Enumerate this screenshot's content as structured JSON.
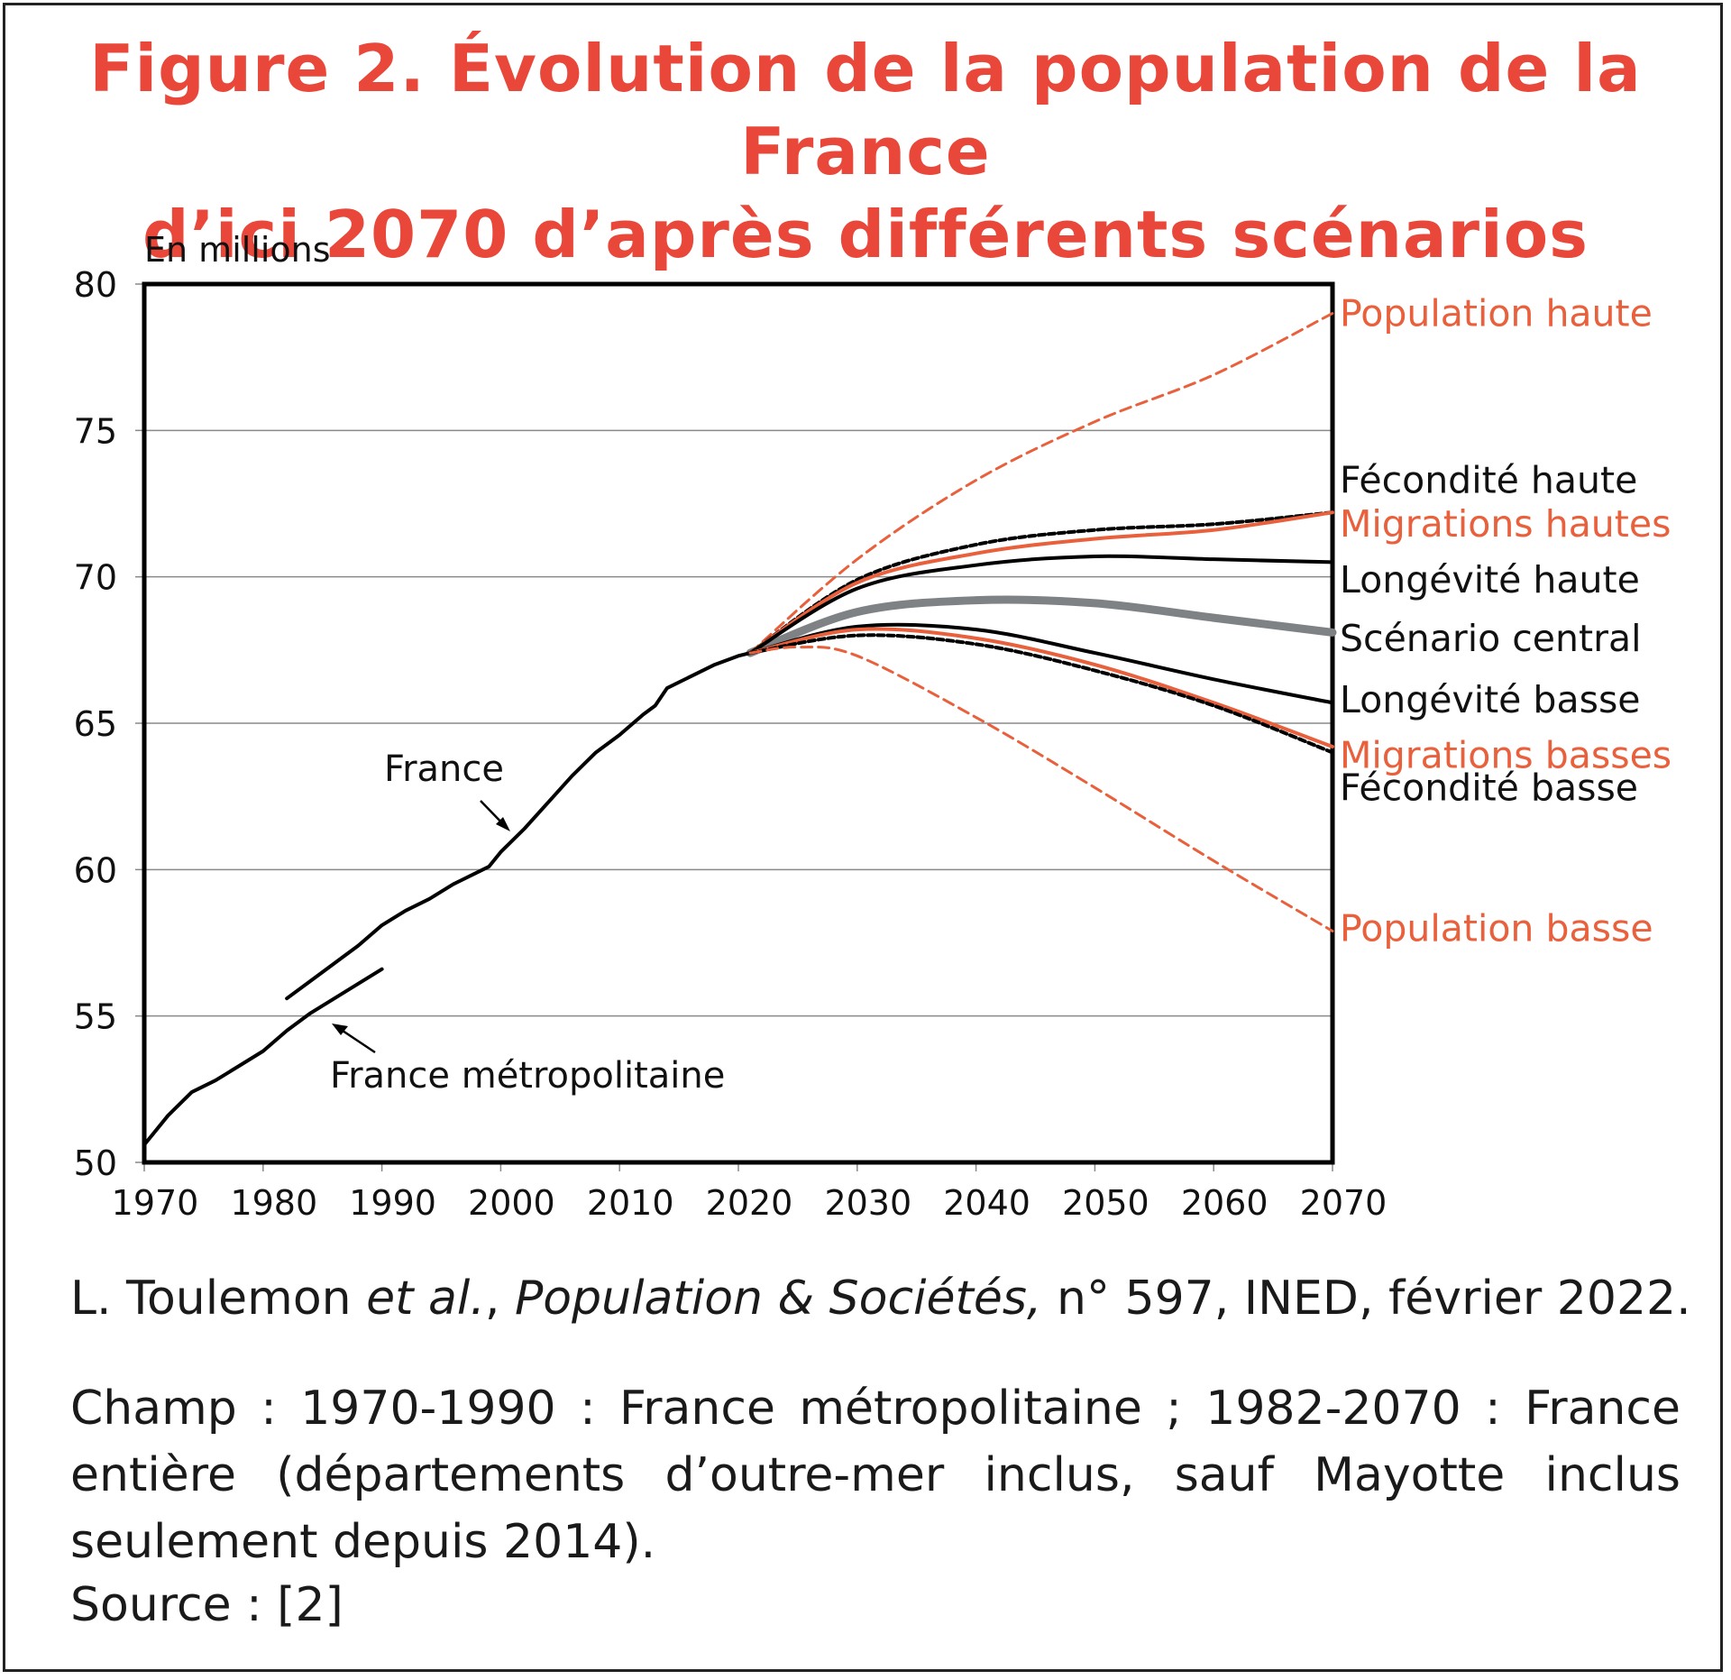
{
  "title_line1": "Figure 2. Évolution de la population de la France",
  "title_line2": "d’ici 2070 d’après différents scénarios",
  "citation": {
    "author": "L. Toulemon ",
    "etal": "et al.",
    "sep": ", ",
    "journal": "Population & Sociétés,",
    "rest": " n° 597, INED, février 2022."
  },
  "champ": "Champ : 1970-1990 : France métropolitaine ; 1982-2070 : France entière (départements d’outre-mer inclus, sauf Mayotte inclus seulement depuis 2014).",
  "source": "Source : [2]",
  "colors": {
    "title": "#e8473a",
    "orange": "#e8603c",
    "black": "#000000",
    "gray": "#7f8284"
  },
  "chart_data": {
    "type": "line",
    "title": "Figure 2. Évolution de la population de la France d’ici 2070 d’après différents scénarios",
    "ylabel": "En millions",
    "xlabel": "",
    "xlim": [
      1970,
      2070
    ],
    "ylim": [
      50,
      80
    ],
    "xticks": [
      1970,
      1980,
      1990,
      2000,
      2010,
      2020,
      2030,
      2040,
      2050,
      2060,
      2070
    ],
    "yticks": [
      50,
      55,
      60,
      65,
      70,
      75,
      80
    ],
    "grid": "horizontal",
    "annotations": [
      {
        "text": "France",
        "arrow_to": [
          2001,
          61.3
        ]
      },
      {
        "text": "France métropolitaine",
        "arrow_to": [
          1985,
          54.8
        ]
      }
    ],
    "series": [
      {
        "name": "France métropolitaine",
        "style": "solid",
        "color": "#000000",
        "x": [
          1970,
          1972,
          1974,
          1976,
          1978,
          1980,
          1982,
          1984,
          1986,
          1988,
          1990
        ],
        "y": [
          50.6,
          51.6,
          52.4,
          52.8,
          53.3,
          53.8,
          54.5,
          55.1,
          55.6,
          56.1,
          56.6
        ]
      },
      {
        "name": "France",
        "style": "solid",
        "color": "#000000",
        "x": [
          1982,
          1984,
          1986,
          1988,
          1990,
          1992,
          1994,
          1996,
          1998,
          1999,
          2000,
          2002,
          2004,
          2006,
          2008,
          2010,
          2012,
          2013,
          2014,
          2016,
          2018,
          2020,
          2021
        ],
        "y": [
          55.6,
          56.2,
          56.8,
          57.4,
          58.1,
          58.6,
          59.0,
          59.5,
          59.9,
          60.1,
          60.6,
          61.4,
          62.3,
          63.2,
          64.0,
          64.6,
          65.3,
          65.6,
          66.2,
          66.6,
          67.0,
          67.3,
          67.4
        ]
      },
      {
        "name": "Population haute",
        "style": "dashed",
        "color": "#e8603c",
        "x": [
          2021,
          2030,
          2040,
          2050,
          2060,
          2070
        ],
        "y": [
          67.4,
          70.6,
          73.3,
          75.3,
          76.9,
          79.0
        ]
      },
      {
        "name": "Fécondité haute",
        "style": "dotted",
        "color": "#000000",
        "x": [
          2021,
          2030,
          2040,
          2050,
          2060,
          2070
        ],
        "y": [
          67.4,
          69.9,
          71.1,
          71.6,
          71.8,
          72.2
        ]
      },
      {
        "name": "Migrations hautes",
        "style": "solid",
        "color": "#e8603c",
        "x": [
          2021,
          2030,
          2040,
          2050,
          2060,
          2070
        ],
        "y": [
          67.4,
          69.8,
          70.8,
          71.3,
          71.6,
          72.2
        ]
      },
      {
        "name": "Longévité haute",
        "style": "solid",
        "color": "#000000",
        "x": [
          2021,
          2030,
          2040,
          2050,
          2060,
          2070
        ],
        "y": [
          67.4,
          69.6,
          70.4,
          70.7,
          70.6,
          70.5
        ]
      },
      {
        "name": "Scénario central",
        "style": "thick",
        "color": "#7f8284",
        "x": [
          2021,
          2030,
          2040,
          2050,
          2060,
          2070
        ],
        "y": [
          67.4,
          68.8,
          69.2,
          69.1,
          68.6,
          68.1
        ]
      },
      {
        "name": "Longévité basse",
        "style": "solid",
        "color": "#000000",
        "x": [
          2021,
          2030,
          2040,
          2050,
          2060,
          2070
        ],
        "y": [
          67.4,
          68.3,
          68.2,
          67.4,
          66.5,
          65.7
        ]
      },
      {
        "name": "Migrations basses",
        "style": "solid",
        "color": "#e8603c",
        "x": [
          2021,
          2030,
          2040,
          2050,
          2060,
          2070
        ],
        "y": [
          67.4,
          68.2,
          67.9,
          67.0,
          65.7,
          64.2
        ]
      },
      {
        "name": "Fécondité basse",
        "style": "dotted",
        "color": "#000000",
        "x": [
          2021,
          2030,
          2040,
          2050,
          2060,
          2070
        ],
        "y": [
          67.4,
          68.0,
          67.7,
          66.8,
          65.6,
          64.0
        ]
      },
      {
        "name": "Population basse",
        "style": "dashed",
        "color": "#e8603c",
        "x": [
          2021,
          2025,
          2030,
          2040,
          2050,
          2060,
          2070
        ],
        "y": [
          67.4,
          67.6,
          67.3,
          65.2,
          62.8,
          60.3,
          57.9
        ]
      }
    ],
    "end_labels": [
      {
        "text": "Population haute",
        "color": "orange",
        "y": 79.0
      },
      {
        "text": "Fécondité haute",
        "color": "black",
        "y": 73.3
      },
      {
        "text": "Migrations hautes",
        "color": "orange",
        "y": 71.8
      },
      {
        "text": "Longévité haute",
        "color": "black",
        "y": 69.9
      },
      {
        "text": "Scénario central",
        "color": "black",
        "y": 67.9
      },
      {
        "text": "Longévité basse",
        "color": "black",
        "y": 65.8
      },
      {
        "text": "Migrations basses",
        "color": "orange",
        "y": 63.9
      },
      {
        "text": "Fécondité basse",
        "color": "black",
        "y": 62.8
      },
      {
        "text": "Population basse",
        "color": "orange",
        "y": 58.0
      }
    ]
  }
}
